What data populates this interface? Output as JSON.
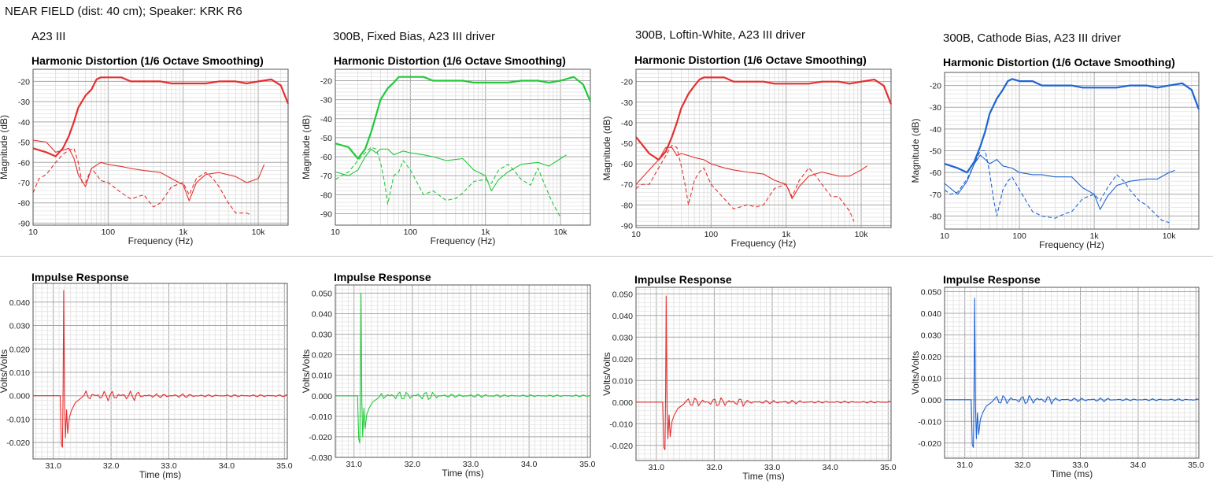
{
  "page": {
    "title": "NEAR FIELD (dist: 40 cm); Speaker: KRK R6"
  },
  "columns": [
    {
      "label": "A23 III",
      "color": "#e53030"
    },
    {
      "label": "300B, Fixed  Bias, A23 III driver",
      "color": "#22c83a"
    },
    {
      "label": "300B, Loftin-White, A23 III driver",
      "color": "#e53030"
    },
    {
      "label": "300B, Cathode Bias, A23 III driver",
      "color": "#1e64d2"
    }
  ],
  "chart_data": [
    {
      "type": "line",
      "title": "Harmonic Distortion (1/6 Octave Smoothing)",
      "xlabel": "Frequency (Hz)",
      "ylabel": "Magnitude (dB)",
      "xscale": "log",
      "xlim": [
        10,
        25000
      ],
      "ylim": [
        -91,
        -14
      ],
      "xticks": [
        "10",
        "100",
        "1k",
        "10k"
      ],
      "yticks": [
        -20,
        -30,
        -40,
        -50,
        -60,
        -70,
        -80,
        -90
      ],
      "grid": true,
      "series": [
        {
          "x": [
            10,
            15,
            20,
            25,
            30,
            35,
            40,
            50,
            60,
            70,
            80,
            100,
            150,
            200,
            300,
            500,
            700,
            1000,
            2000,
            3000,
            5000,
            7000,
            10000,
            15000,
            20000,
            25000
          ],
          "y": [
            -53,
            -55,
            -57,
            -53,
            -47,
            -40,
            -33,
            -27,
            -24,
            -19,
            -18,
            -18,
            -18,
            -20,
            -20,
            -20,
            -21,
            -21,
            -21,
            -20,
            -20,
            -21,
            -20,
            -19,
            -22,
            -31
          ]
        },
        {
          "x": [
            10,
            15,
            20,
            25,
            30,
            35,
            40,
            50,
            60,
            80,
            100,
            150,
            200,
            300,
            500,
            700,
            1000,
            1200,
            1500,
            2000,
            3000,
            5000,
            7000,
            10000,
            12000
          ],
          "y": [
            -49,
            -50,
            -55,
            -54,
            -53,
            -58,
            -66,
            -72,
            -63,
            -60,
            -61,
            -62,
            -63,
            -64,
            -65,
            -68,
            -71,
            -79,
            -70,
            -66,
            -65,
            -67,
            -70,
            -68,
            -61
          ]
        },
        {
          "x": [
            10,
            12,
            15,
            20,
            25,
            30,
            35,
            40,
            45,
            50,
            60,
            70,
            80,
            100,
            150,
            200,
            300,
            400,
            500,
            700,
            1000,
            1200,
            1500,
            2000,
            2500,
            3000,
            4000,
            5000,
            7000,
            8000
          ],
          "y": [
            -75,
            -68,
            -66,
            -60,
            -56,
            -54,
            -53,
            -60,
            -70,
            -70,
            -63,
            -66,
            -69,
            -70,
            -75,
            -78,
            -76,
            -82,
            -80,
            -72,
            -70,
            -76,
            -68,
            -65,
            -68,
            -72,
            -80,
            -85,
            -85,
            -86
          ]
        }
      ]
    },
    {
      "type": "line",
      "title": "Harmonic Distortion (1/6 Octave Smoothing)",
      "xlabel": "Frequency (Hz)",
      "ylabel": "Magnitude (dB)",
      "xscale": "log",
      "xlim": [
        10,
        25000
      ],
      "ylim": [
        -96,
        -14
      ],
      "xticks": [
        "10",
        "100",
        "1k",
        "10k"
      ],
      "yticks": [
        -20,
        -30,
        -40,
        -50,
        -60,
        -70,
        -80,
        -90
      ],
      "grid": true,
      "series": [
        {
          "x": [
            10,
            15,
            20,
            25,
            30,
            35,
            40,
            50,
            60,
            70,
            80,
            100,
            150,
            200,
            300,
            500,
            700,
            1000,
            2000,
            3000,
            5000,
            7000,
            10000,
            15000,
            20000,
            25000
          ],
          "y": [
            -53,
            -55,
            -61,
            -56,
            -47,
            -38,
            -30,
            -24,
            -21,
            -18,
            -18,
            -18,
            -18,
            -20,
            -20,
            -20,
            -21,
            -21,
            -21,
            -20,
            -20,
            -21,
            -20,
            -18,
            -22,
            -31
          ]
        },
        {
          "x": [
            10,
            15,
            20,
            25,
            30,
            35,
            40,
            50,
            60,
            80,
            100,
            150,
            200,
            300,
            500,
            700,
            1000,
            1200,
            1500,
            2000,
            3000,
            5000,
            7000,
            10000,
            12000
          ],
          "y": [
            -68,
            -70,
            -67,
            -60,
            -56,
            -58,
            -56,
            -56,
            -59,
            -57,
            -58,
            -59,
            -60,
            -62,
            -61,
            -67,
            -70,
            -78,
            -72,
            -68,
            -64,
            -63,
            -65,
            -61,
            -59
          ]
        },
        {
          "x": [
            10,
            12,
            15,
            20,
            25,
            30,
            35,
            40,
            45,
            50,
            60,
            70,
            80,
            100,
            150,
            200,
            300,
            400,
            500,
            700,
            1000,
            1200,
            1500,
            2000,
            2500,
            3000,
            4000,
            5000,
            7000,
            8000,
            10000
          ],
          "y": [
            -72,
            -70,
            -68,
            -62,
            -58,
            -55,
            -56,
            -63,
            -73,
            -85,
            -70,
            -68,
            -62,
            -67,
            -80,
            -78,
            -83,
            -82,
            -79,
            -73,
            -72,
            -74,
            -67,
            -64,
            -68,
            -72,
            -75,
            -66,
            -80,
            -85,
            -92
          ]
        }
      ]
    },
    {
      "type": "line",
      "title": "Harmonic Distortion (1/6 Octave Smoothing)",
      "xlabel": "Frequency (Hz)",
      "ylabel": "Magnitude (dB)",
      "xscale": "log",
      "xlim": [
        10,
        25000
      ],
      "ylim": [
        -91,
        -14
      ],
      "xticks": [
        "10",
        "100",
        "1k",
        "10k"
      ],
      "yticks": [
        -20,
        -30,
        -40,
        -50,
        -60,
        -70,
        -80,
        -90
      ],
      "grid": true,
      "series": [
        {
          "x": [
            10,
            15,
            20,
            25,
            30,
            35,
            40,
            50,
            60,
            70,
            80,
            100,
            150,
            200,
            300,
            500,
            700,
            1000,
            2000,
            3000,
            5000,
            7000,
            10000,
            15000,
            20000,
            25000
          ],
          "y": [
            -47,
            -55,
            -58,
            -54,
            -47,
            -40,
            -33,
            -26,
            -22,
            -19,
            -18,
            -18,
            -18,
            -20,
            -20,
            -20,
            -21,
            -21,
            -21,
            -20,
            -20,
            -21,
            -20,
            -19,
            -22,
            -31
          ]
        },
        {
          "x": [
            10,
            15,
            20,
            25,
            30,
            35,
            40,
            50,
            60,
            80,
            100,
            150,
            200,
            300,
            500,
            700,
            1000,
            1200,
            1500,
            2000,
            3000,
            5000,
            7000,
            10000,
            12000
          ],
          "y": [
            -70,
            -63,
            -58,
            -52,
            -52,
            -56,
            -55,
            -56,
            -57,
            -58,
            -60,
            -62,
            -63,
            -64,
            -65,
            -68,
            -70,
            -77,
            -71,
            -66,
            -64,
            -66,
            -66,
            -63,
            -61
          ]
        },
        {
          "x": [
            10,
            12,
            15,
            20,
            25,
            30,
            35,
            40,
            45,
            50,
            60,
            70,
            80,
            100,
            150,
            200,
            300,
            400,
            500,
            700,
            1000,
            1200,
            1500,
            2000,
            2500,
            3000,
            4000,
            5000,
            7000,
            8000
          ],
          "y": [
            -72,
            -70,
            -70,
            -62,
            -56,
            -51,
            -52,
            -61,
            -70,
            -80,
            -68,
            -64,
            -62,
            -70,
            -77,
            -82,
            -80,
            -81,
            -80,
            -72,
            -70,
            -76,
            -68,
            -62,
            -66,
            -70,
            -76,
            -76,
            -83,
            -88
          ]
        }
      ]
    },
    {
      "type": "line",
      "title": "Harmonic Distortion (1/6 Octave Smoothing)",
      "xlabel": "Frequency (Hz)",
      "ylabel": "Magnitude (dB)",
      "xscale": "log",
      "xlim": [
        10,
        25000
      ],
      "ylim": [
        -86,
        -14
      ],
      "xticks": [
        "10",
        "100",
        "1k",
        "10k"
      ],
      "yticks": [
        -20,
        -30,
        -40,
        -50,
        -60,
        -70,
        -80
      ],
      "grid": true,
      "series": [
        {
          "x": [
            10,
            15,
            20,
            25,
            30,
            35,
            40,
            50,
            60,
            70,
            80,
            100,
            150,
            200,
            300,
            500,
            700,
            1000,
            2000,
            3000,
            5000,
            7000,
            10000,
            15000,
            20000,
            25000
          ],
          "y": [
            -56,
            -58,
            -60,
            -55,
            -48,
            -41,
            -33,
            -26,
            -22,
            -18,
            -17,
            -18,
            -18,
            -20,
            -20,
            -20,
            -21,
            -21,
            -21,
            -20,
            -20,
            -21,
            -20,
            -19,
            -22,
            -31
          ]
        },
        {
          "x": [
            10,
            15,
            20,
            25,
            30,
            35,
            40,
            50,
            60,
            80,
            100,
            150,
            200,
            300,
            500,
            700,
            1000,
            1200,
            1500,
            2000,
            3000,
            5000,
            7000,
            10000,
            12000
          ],
          "y": [
            -65,
            -70,
            -64,
            -56,
            -52,
            -54,
            -56,
            -54,
            -57,
            -58,
            -60,
            -61,
            -61,
            -62,
            -62,
            -67,
            -70,
            -77,
            -71,
            -66,
            -64,
            -63,
            -63,
            -60,
            -59
          ]
        },
        {
          "x": [
            10,
            12,
            15,
            20,
            25,
            30,
            35,
            40,
            45,
            50,
            60,
            70,
            80,
            100,
            150,
            200,
            300,
            400,
            500,
            700,
            1000,
            1200,
            1500,
            2000,
            2500,
            3000,
            4000,
            5000,
            7000,
            8000,
            10000
          ],
          "y": [
            -68,
            -70,
            -69,
            -63,
            -56,
            -50,
            -50,
            -60,
            -72,
            -80,
            -68,
            -64,
            -62,
            -68,
            -78,
            -80,
            -81,
            -79,
            -78,
            -72,
            -70,
            -73,
            -67,
            -61,
            -64,
            -68,
            -73,
            -75,
            -80,
            -82,
            -83
          ]
        }
      ]
    },
    {
      "type": "line",
      "title": "Impulse Response",
      "xlabel": "Time (ms)",
      "ylabel": "Volts/Volts",
      "xlim": [
        30.65,
        35.05
      ],
      "ylim": [
        -0.027,
        0.048
      ],
      "xticks": [
        "31.0",
        "32.0",
        "33.0",
        "34.0",
        "35.0"
      ],
      "yticks": [
        "0.040",
        "0.030",
        "0.020",
        "0.010",
        "0.000",
        "-0.010",
        "-0.020"
      ],
      "grid": true,
      "series": [
        {
          "peak_time": 31.18,
          "peak": 0.045,
          "trough": -0.022,
          "trough2": -0.018
        }
      ]
    },
    {
      "type": "line",
      "title": "Impulse Response",
      "xlabel": "Time (ms)",
      "ylabel": "Volts/Volts",
      "xlim": [
        30.68,
        35.05
      ],
      "ylim": [
        -0.03,
        0.054
      ],
      "xticks": [
        "31.0",
        "32.0",
        "33.0",
        "34.0",
        "35.0"
      ],
      "yticks": [
        "0.050",
        "0.040",
        "0.030",
        "0.020",
        "0.010",
        "0.000",
        "-0.010",
        "-0.020",
        "-0.030"
      ],
      "grid": true,
      "series": [
        {
          "peak_time": 31.12,
          "peak": 0.05,
          "trough": -0.023,
          "trough2": -0.02
        }
      ]
    },
    {
      "type": "line",
      "title": "Impulse Response",
      "xlabel": "Time (ms)",
      "ylabel": "Volts/Volts",
      "xlim": [
        30.65,
        35.05
      ],
      "ylim": [
        -0.027,
        0.053
      ],
      "xticks": [
        "31.0",
        "32.0",
        "33.0",
        "34.0",
        "35.0"
      ],
      "yticks": [
        "0.050",
        "0.040",
        "0.030",
        "0.020",
        "0.010",
        "0.000",
        "-0.010",
        "-0.020"
      ],
      "grid": true,
      "series": [
        {
          "peak_time": 31.17,
          "peak": 0.049,
          "trough": -0.022,
          "trough2": -0.017
        }
      ]
    },
    {
      "type": "line",
      "title": "Impulse Response",
      "xlabel": "Time (ms)",
      "ylabel": "Volts/Volts",
      "xlim": [
        30.65,
        35.05
      ],
      "ylim": [
        -0.027,
        0.052
      ],
      "xticks": [
        "31.0",
        "32.0",
        "33.0",
        "34.0",
        "35.0"
      ],
      "yticks": [
        "0.050",
        "0.040",
        "0.030",
        "0.020",
        "0.010",
        "0.000",
        "-0.010",
        "-0.020"
      ],
      "grid": true,
      "series": [
        {
          "peak_time": 31.17,
          "peak": 0.047,
          "trough": -0.022,
          "trough2": -0.018
        }
      ]
    }
  ]
}
